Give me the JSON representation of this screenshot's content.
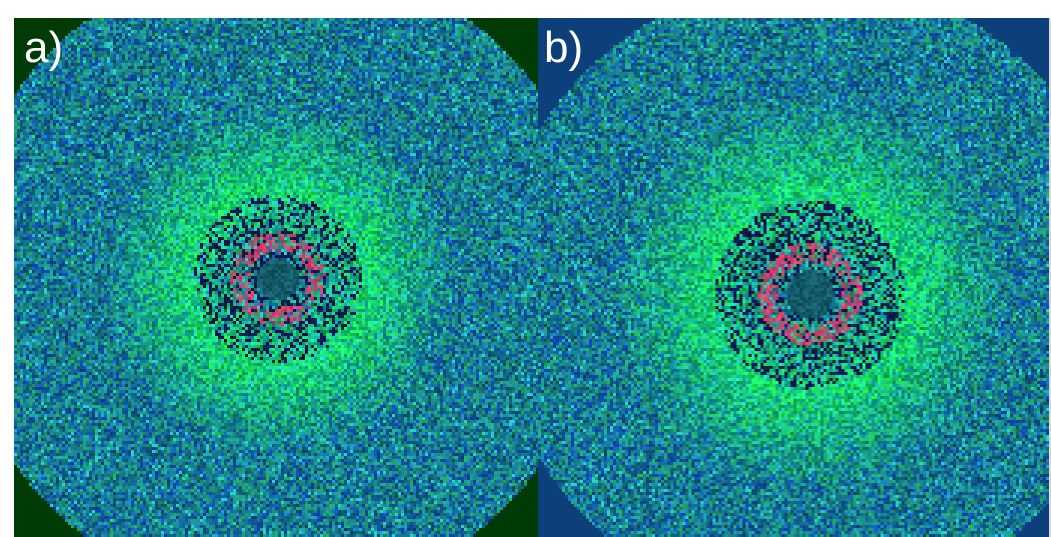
{
  "panels": [
    {
      "label": "a)",
      "background_color": "#003b06",
      "description_colors": [
        "#1f3fa0",
        "#1aa35a",
        "#22d060",
        "#c8505a",
        "#0e1a40"
      ]
    },
    {
      "label": "b)",
      "background_color": "#0d3f7a",
      "description_colors": [
        "#1f3fa0",
        "#1aa35a",
        "#22d060",
        "#c8505a",
        "#0e1a40"
      ]
    }
  ],
  "colors": {
    "label_text": "#ffffff",
    "page_background": "#ffffff"
  }
}
